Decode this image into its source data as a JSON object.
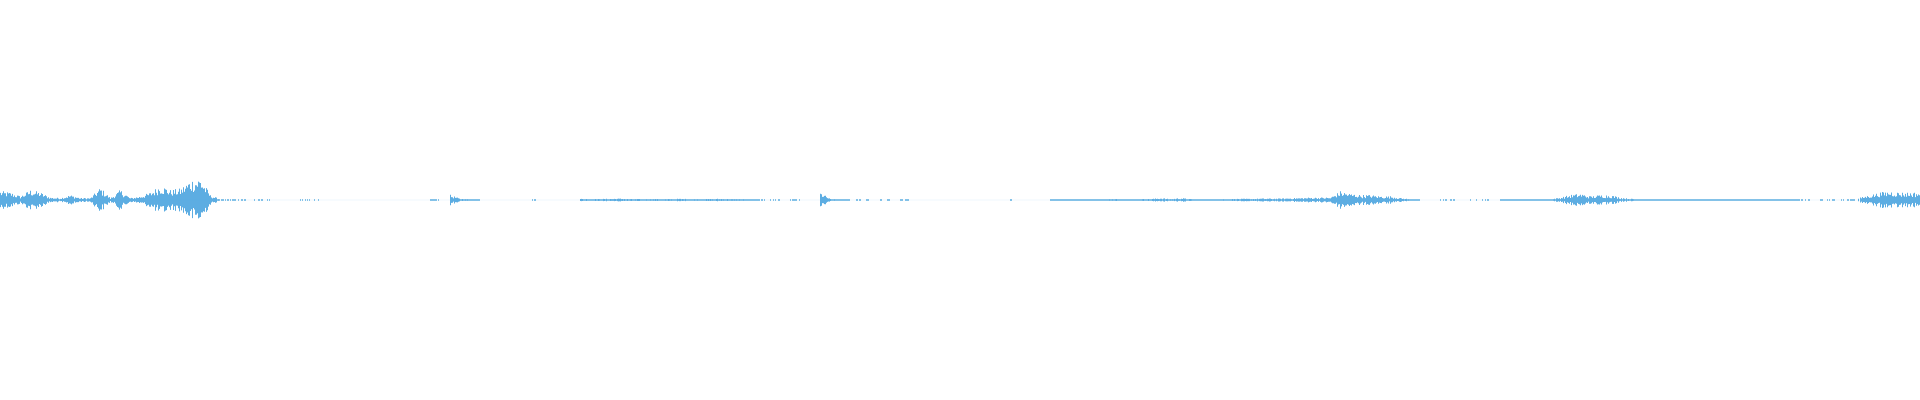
{
  "waveform": {
    "color": "#5dade2",
    "background": "#ffffff",
    "envelope": [
      0.35,
      0.3,
      0.15,
      0.4,
      0.3,
      0.1,
      0.08,
      0.2,
      0.08,
      0.08,
      0.5,
      0.08,
      0.4,
      0.08,
      0.15,
      0.3,
      0.6,
      0.4,
      0.45,
      0.8,
      0.9,
      0.2,
      0.02,
      0.02,
      0.02,
      0.02,
      0.02,
      0,
      0,
      0,
      0.02,
      0.02,
      0,
      0,
      0,
      0,
      0,
      0,
      0,
      0,
      0,
      0,
      0,
      0.02,
      0,
      0.2,
      0.05,
      0.03,
      0,
      0,
      0,
      0,
      0,
      0.02,
      0,
      0,
      0,
      0,
      0.05,
      0.04,
      0.04,
      0.05,
      0.06,
      0.04,
      0.04,
      0.04,
      0.04,
      0.04,
      0.05,
      0.04,
      0.04,
      0.04,
      0.05,
      0.04,
      0.04,
      0.03,
      0.02,
      0.02,
      0,
      0.02,
      0,
      0,
      0.3,
      0.04,
      0.03,
      0.02,
      0.02,
      0,
      0.02,
      0,
      0.02,
      0,
      0,
      0,
      0,
      0,
      0,
      0,
      0,
      0,
      0,
      0.02,
      0,
      0,
      0,
      0.03,
      0.03,
      0.03,
      0.03,
      0.03,
      0.03,
      0.04,
      0.04,
      0.03,
      0.04,
      0.04,
      0.08,
      0.04,
      0.08,
      0.04,
      0.03,
      0.03,
      0.04,
      0.04,
      0.05,
      0.05,
      0.06,
      0.06,
      0.06,
      0.08,
      0.08,
      0.1,
      0.1,
      0.1,
      0.35,
      0.25,
      0.2,
      0.2,
      0.15,
      0.15,
      0.08,
      0.03,
      0,
      0,
      0.02,
      0.02,
      0,
      0.02,
      0.02,
      0,
      0.03,
      0.03,
      0.03,
      0.03,
      0.03,
      0.03,
      0.1,
      0.2,
      0.25,
      0.15,
      0.2,
      0.2,
      0.1,
      0.05,
      0.03,
      0.03,
      0.03,
      0.03,
      0.03,
      0.03,
      0.03,
      0.03,
      0.03,
      0.03,
      0.03,
      0.03,
      0.03,
      0.03,
      0.03,
      0.03,
      0.02,
      0,
      0.02,
      0.02,
      0.02,
      0.02,
      0.1,
      0.2,
      0.3,
      0.35,
      0.3,
      0.3
    ]
  }
}
